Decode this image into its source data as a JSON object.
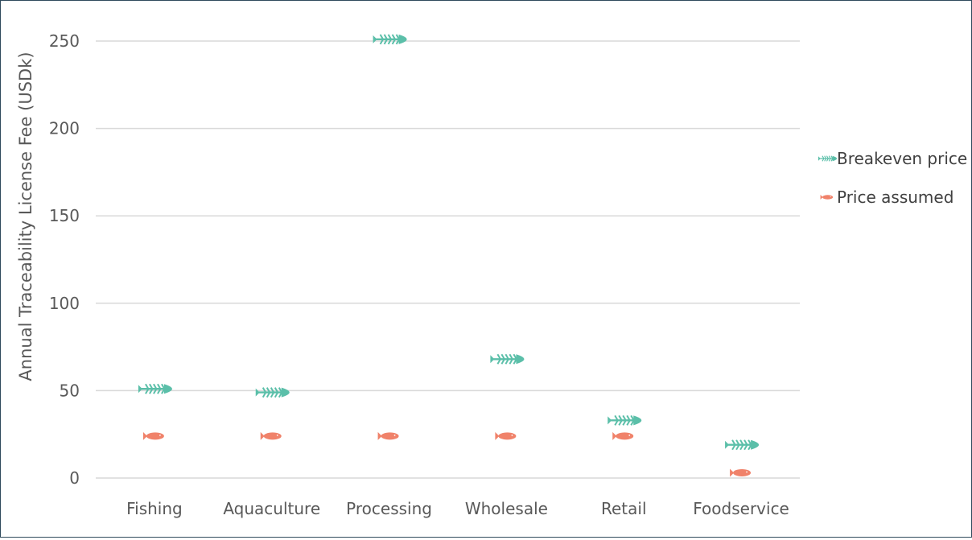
{
  "chart_data": {
    "type": "scatter",
    "categories": [
      "Fishing",
      "Aquaculture",
      "Processing",
      "Wholesale",
      "Retail",
      "Foodservice"
    ],
    "ylabel": "Annual Traceability License Fee (USDk)",
    "xlabel": "",
    "ylim": [
      0,
      250
    ],
    "yticks": [
      0,
      50,
      100,
      150,
      200,
      250
    ],
    "grid": true,
    "legend_position": "right",
    "series": [
      {
        "name": "Breakeven price",
        "color": "#5bbfa9",
        "marker": "fish-skeleton-icon",
        "values": [
          51,
          49,
          251,
          68,
          33,
          19
        ]
      },
      {
        "name": "Price assumed",
        "color": "#f0826a",
        "marker": "fish-icon",
        "values": [
          24,
          24,
          24,
          24,
          24,
          3
        ]
      }
    ]
  }
}
